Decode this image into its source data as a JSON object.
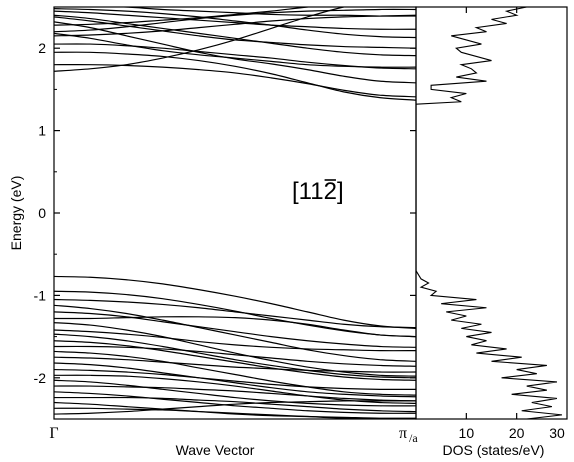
{
  "chart_data": [
    {
      "type": "line",
      "name": "band-structure",
      "xlabel": "Wave Vector",
      "ylabel": "Energy (eV)",
      "ylim": [
        -2.5,
        2.5
      ],
      "yticks": [
        -2,
        -1,
        0,
        1,
        2
      ],
      "x_tick_labels": {
        "left": "Γ",
        "right_main": "π",
        "right_sub": "/a"
      },
      "annotation": {
        "prefix": "[11",
        "overbar_digit": "2",
        "suffix": "]"
      },
      "grid": false,
      "x": [
        0,
        0.1,
        0.2,
        0.3,
        0.4,
        0.5,
        0.6,
        0.7,
        0.8,
        0.9,
        1.0
      ],
      "series": [
        {
          "values": [
            1.8,
            1.8,
            1.79,
            1.77,
            1.74,
            1.7,
            1.64,
            1.57,
            1.49,
            1.43,
            1.41
          ]
        },
        {
          "values": [
            1.95,
            1.95,
            1.93,
            1.9,
            1.85,
            1.78,
            1.69,
            1.58,
            1.47,
            1.4,
            1.37
          ]
        },
        {
          "values": [
            1.72,
            1.75,
            1.8,
            1.88,
            1.98,
            2.1,
            2.24,
            2.38,
            2.5,
            2.58,
            2.62
          ]
        },
        {
          "values": [
            2.05,
            2.05,
            2.03,
            2.0,
            1.96,
            1.92,
            1.88,
            1.83,
            1.79,
            1.76,
            1.75
          ]
        },
        {
          "values": [
            2.18,
            2.12,
            2.04,
            1.97,
            1.92,
            1.88,
            1.84,
            1.8,
            1.78,
            1.77,
            1.77
          ]
        },
        {
          "values": [
            2.32,
            2.25,
            2.15,
            2.05,
            1.95,
            1.87,
            1.81,
            1.74,
            1.66,
            1.6,
            1.58
          ]
        },
        {
          "values": [
            2.38,
            2.33,
            2.27,
            2.21,
            2.15,
            2.1,
            2.07,
            2.04,
            2.02,
            2.01,
            2.0
          ]
        },
        {
          "values": [
            2.48,
            2.47,
            2.45,
            2.42,
            2.38,
            2.33,
            2.28,
            2.22,
            2.17,
            2.14,
            2.13
          ]
        },
        {
          "values": [
            2.2,
            2.22,
            2.26,
            2.31,
            2.36,
            2.4,
            2.43,
            2.45,
            2.46,
            2.47,
            2.47
          ]
        },
        {
          "values": [
            2.15,
            2.16,
            2.18,
            2.21,
            2.25,
            2.29,
            2.33,
            2.36,
            2.38,
            2.39,
            2.4
          ]
        },
        {
          "values": [
            2.45,
            2.43,
            2.4,
            2.37,
            2.34,
            2.31,
            2.28,
            2.26,
            2.24,
            2.23,
            2.23
          ]
        },
        {
          "values": [
            2.55,
            2.52,
            2.5,
            2.47,
            2.45,
            2.43,
            2.41,
            2.4,
            2.4,
            2.39,
            2.39
          ]
        },
        {
          "values": [
            2.4,
            2.36,
            2.3,
            2.24,
            2.18,
            2.12,
            2.06,
            2.0,
            1.95,
            1.92,
            1.91
          ]
        },
        {
          "values": [
            2.28,
            2.29,
            2.31,
            2.34,
            2.37,
            2.41,
            2.45,
            2.5,
            2.54,
            2.57,
            2.58
          ]
        },
        {
          "values": [
            -0.77,
            -0.78,
            -0.81,
            -0.86,
            -0.93,
            -1.01,
            -1.1,
            -1.2,
            -1.3,
            -1.37,
            -1.4
          ]
        },
        {
          "values": [
            -0.95,
            -0.96,
            -0.99,
            -1.04,
            -1.11,
            -1.19,
            -1.28,
            -1.36,
            -1.43,
            -1.48,
            -1.5
          ]
        },
        {
          "values": [
            -1.05,
            -1.06,
            -1.08,
            -1.11,
            -1.15,
            -1.2,
            -1.25,
            -1.3,
            -1.35,
            -1.38,
            -1.39
          ]
        },
        {
          "values": [
            -1.12,
            -1.16,
            -1.22,
            -1.3,
            -1.39,
            -1.48,
            -1.57,
            -1.66,
            -1.73,
            -1.78,
            -1.8
          ]
        },
        {
          "values": [
            -1.2,
            -1.22,
            -1.26,
            -1.32,
            -1.38,
            -1.44,
            -1.5,
            -1.55,
            -1.59,
            -1.62,
            -1.63
          ]
        },
        {
          "values": [
            -1.28,
            -1.28,
            -1.27,
            -1.26,
            -1.26,
            -1.27,
            -1.3,
            -1.35,
            -1.42,
            -1.48,
            -1.5
          ]
        },
        {
          "values": [
            -1.33,
            -1.36,
            -1.42,
            -1.5,
            -1.6,
            -1.7,
            -1.79,
            -1.87,
            -1.93,
            -1.97,
            -1.98
          ]
        },
        {
          "values": [
            -1.42,
            -1.44,
            -1.47,
            -1.51,
            -1.56,
            -1.6,
            -1.63,
            -1.65,
            -1.66,
            -1.67,
            -1.67
          ]
        },
        {
          "values": [
            -1.47,
            -1.5,
            -1.55,
            -1.62,
            -1.7,
            -1.78,
            -1.85,
            -1.91,
            -1.96,
            -1.99,
            -2.0
          ]
        },
        {
          "values": [
            -1.55,
            -1.57,
            -1.61,
            -1.67,
            -1.74,
            -1.81,
            -1.88,
            -1.94,
            -1.99,
            -2.02,
            -2.03
          ]
        },
        {
          "values": [
            -1.62,
            -1.62,
            -1.63,
            -1.65,
            -1.68,
            -1.72,
            -1.76,
            -1.8,
            -1.83,
            -1.85,
            -1.86
          ]
        },
        {
          "values": [
            -1.68,
            -1.7,
            -1.74,
            -1.8,
            -1.88,
            -1.96,
            -2.04,
            -2.11,
            -2.17,
            -2.2,
            -2.21
          ]
        },
        {
          "values": [
            -1.75,
            -1.76,
            -1.78,
            -1.81,
            -1.84,
            -1.87,
            -1.89,
            -1.91,
            -1.92,
            -1.93,
            -1.93
          ]
        },
        {
          "values": [
            -1.82,
            -1.84,
            -1.88,
            -1.94,
            -2.0,
            -2.06,
            -2.12,
            -2.17,
            -2.2,
            -2.22,
            -2.23
          ]
        },
        {
          "values": [
            -1.9,
            -1.91,
            -1.93,
            -1.96,
            -2.0,
            -2.04,
            -2.08,
            -2.11,
            -2.13,
            -2.14,
            -2.14
          ]
        },
        {
          "values": [
            -1.97,
            -1.97,
            -1.98,
            -2.01,
            -2.05,
            -2.1,
            -2.16,
            -2.22,
            -2.27,
            -2.3,
            -2.31
          ]
        },
        {
          "values": [
            -2.03,
            -2.05,
            -2.09,
            -2.14,
            -2.19,
            -2.24,
            -2.28,
            -2.31,
            -2.33,
            -2.34,
            -2.34
          ]
        },
        {
          "values": [
            -2.1,
            -2.1,
            -2.11,
            -2.12,
            -2.14,
            -2.16,
            -2.19,
            -2.22,
            -2.25,
            -2.27,
            -2.28
          ]
        },
        {
          "values": [
            -2.17,
            -2.19,
            -2.22,
            -2.26,
            -2.3,
            -2.34,
            -2.37,
            -2.4,
            -2.42,
            -2.43,
            -2.43
          ]
        },
        {
          "values": [
            -2.24,
            -2.24,
            -2.24,
            -2.25,
            -2.27,
            -2.29,
            -2.32,
            -2.35,
            -2.38,
            -2.4,
            -2.41
          ]
        },
        {
          "values": [
            -2.3,
            -2.32,
            -2.35,
            -2.38,
            -2.41,
            -2.44,
            -2.46,
            -2.47,
            -2.48,
            -2.49,
            -2.49
          ]
        },
        {
          "values": [
            -2.37,
            -2.37,
            -2.38,
            -2.39,
            -2.41,
            -2.43,
            -2.45,
            -2.47,
            -2.49,
            -2.5,
            -2.5
          ]
        },
        {
          "values": [
            -2.44,
            -2.43,
            -2.41,
            -2.38,
            -2.35,
            -2.32,
            -2.3,
            -2.29,
            -2.28,
            -2.28,
            -2.28
          ]
        }
      ]
    },
    {
      "type": "line",
      "name": "density-of-states",
      "xlabel": "DOS (states/eV)",
      "xlim": [
        0,
        30
      ],
      "xticks": [
        10,
        20,
        30
      ],
      "ylim": [
        -2.5,
        2.5
      ],
      "grid": false,
      "energy": [
        -2.5,
        -2.45,
        -2.4,
        -2.35,
        -2.3,
        -2.25,
        -2.2,
        -2.15,
        -2.1,
        -2.05,
        -2.0,
        -1.95,
        -1.9,
        -1.85,
        -1.8,
        -1.75,
        -1.7,
        -1.65,
        -1.6,
        -1.55,
        -1.5,
        -1.45,
        -1.4,
        -1.35,
        -1.3,
        -1.25,
        -1.2,
        -1.15,
        -1.1,
        -1.05,
        -1.0,
        -0.95,
        -0.9,
        -0.85,
        -0.8,
        -0.75,
        -0.7,
        1.32,
        1.35,
        1.4,
        1.45,
        1.5,
        1.55,
        1.6,
        1.65,
        1.7,
        1.75,
        1.8,
        1.85,
        1.9,
        1.95,
        2.0,
        2.05,
        2.1,
        2.15,
        2.2,
        2.25,
        2.3,
        2.35,
        2.4,
        2.45,
        2.5
      ],
      "values": [
        22,
        29,
        21,
        27,
        23,
        28,
        19,
        26,
        22,
        28,
        17,
        24,
        20,
        26,
        15,
        21,
        12,
        18,
        11,
        14,
        10,
        15,
        9,
        13,
        7,
        10,
        6,
        14,
        5,
        12,
        3,
        4,
        1,
        2.5,
        1,
        0.5,
        0,
        0,
        9,
        7,
        10,
        3,
        3,
        14,
        8,
        12,
        11,
        9,
        15,
        12,
        9,
        8,
        13,
        10,
        7,
        14,
        12,
        18,
        15,
        20,
        18,
        22
      ]
    }
  ]
}
